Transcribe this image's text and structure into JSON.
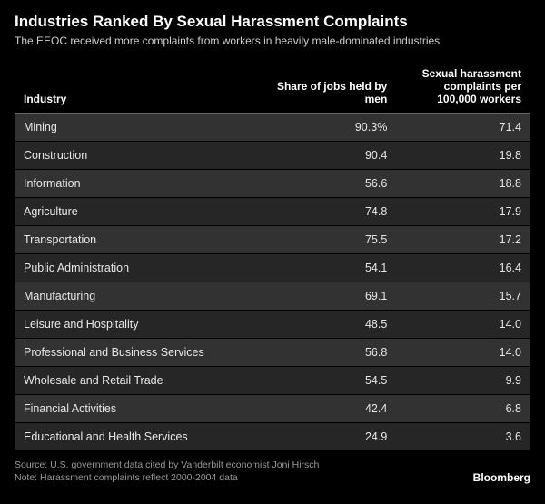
{
  "title": "Industries Ranked By Sexual Harassment Complaints",
  "subtitle": "The EEOC received more complaints from workers in heavily male-dominated industries",
  "table": {
    "columns": {
      "industry": "Industry",
      "share": "Share of jobs held by men",
      "complaints": "Sexual harassment complaints per 100,000 workers"
    },
    "rows": [
      {
        "industry": "Mining",
        "share": "90.3%",
        "complaints": "71.4"
      },
      {
        "industry": "Construction",
        "share": "90.4",
        "complaints": "19.8"
      },
      {
        "industry": "Information",
        "share": "56.6",
        "complaints": "18.8"
      },
      {
        "industry": "Agriculture",
        "share": "74.8",
        "complaints": "17.9"
      },
      {
        "industry": "Transportation",
        "share": "75.5",
        "complaints": "17.2"
      },
      {
        "industry": "Public Administration",
        "share": "54.1",
        "complaints": "16.4"
      },
      {
        "industry": "Manufacturing",
        "share": "69.1",
        "complaints": "15.7"
      },
      {
        "industry": "Leisure and Hospitality",
        "share": "48.5",
        "complaints": "14.0"
      },
      {
        "industry": "Professional and Business Services",
        "share": "56.8",
        "complaints": "14.0"
      },
      {
        "industry": "Wholesale and Retail Trade",
        "share": "54.5",
        "complaints": "9.9"
      },
      {
        "industry": "Financial Activities",
        "share": "42.4",
        "complaints": "6.8"
      },
      {
        "industry": "Educational and Health Services",
        "share": "24.9",
        "complaints": "3.6"
      }
    ],
    "row_colors": {
      "odd": "#323232",
      "even": "#262626"
    },
    "header_border": "#666666",
    "text_color": "#e8e8e8",
    "header_text_color": "#ffffff"
  },
  "source_line": "Source: U.S. government data cited by Vanderbilt economist Joni Hirsch",
  "note_line": "Note: Harassment complaints reflect 2000-2004 data",
  "brand": "Bloomberg",
  "background_color": "#000000",
  "title_fontsize": 17,
  "subtitle_fontsize": 12,
  "body_fontsize": 12.5,
  "footer_fontsize": 10.5
}
